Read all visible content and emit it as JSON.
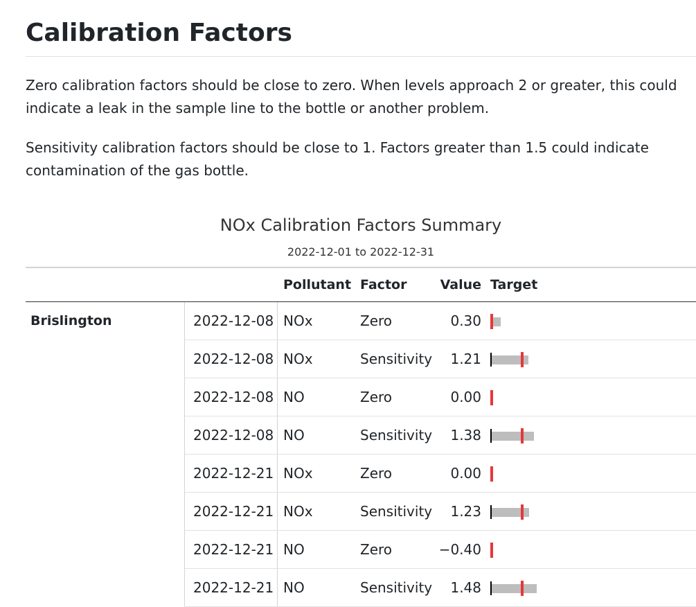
{
  "page": {
    "title": "Calibration Factors",
    "paragraphs": [
      "Zero calibration factors should be close to zero. When levels approach 2 or greater, this could indicate a leak in the sample line to the bottle or another problem.",
      "Sensitivity calibration factors should be close to 1. Factors greater than 1.5 could indicate contamination of the gas bottle."
    ]
  },
  "table": {
    "title": "NOx Calibration Factors Summary",
    "subtitle": "2022-12-01 to 2022-12-31",
    "columns": {
      "pollutant": "Pollutant",
      "factor": "Factor",
      "value": "Value",
      "target": "Target"
    },
    "group": "Brislington",
    "rows": [
      {
        "date": "2022-12-08",
        "pollutant": "NOx",
        "factor": "Zero",
        "value": "0.30",
        "value_num": 0.3,
        "target": 0
      },
      {
        "date": "2022-12-08",
        "pollutant": "NOx",
        "factor": "Sensitivity",
        "value": "1.21",
        "value_num": 1.21,
        "target": 1
      },
      {
        "date": "2022-12-08",
        "pollutant": "NO",
        "factor": "Zero",
        "value": "0.00",
        "value_num": 0.0,
        "target": 0
      },
      {
        "date": "2022-12-08",
        "pollutant": "NO",
        "factor": "Sensitivity",
        "value": "1.38",
        "value_num": 1.38,
        "target": 1
      },
      {
        "date": "2022-12-21",
        "pollutant": "NOx",
        "factor": "Zero",
        "value": "0.00",
        "value_num": 0.0,
        "target": 0
      },
      {
        "date": "2022-12-21",
        "pollutant": "NOx",
        "factor": "Sensitivity",
        "value": "1.23",
        "value_num": 1.23,
        "target": 1
      },
      {
        "date": "2022-12-21",
        "pollutant": "NO",
        "factor": "Zero",
        "value": "−0.40",
        "value_num": -0.4,
        "target": 0
      },
      {
        "date": "2022-12-21",
        "pollutant": "NO",
        "factor": "Sensitivity",
        "value": "1.48",
        "value_num": 1.48,
        "target": 1
      }
    ],
    "colors": {
      "bar": "#bdbdbd",
      "target_marker": "#e8363a",
      "baseline": "#000000"
    }
  }
}
